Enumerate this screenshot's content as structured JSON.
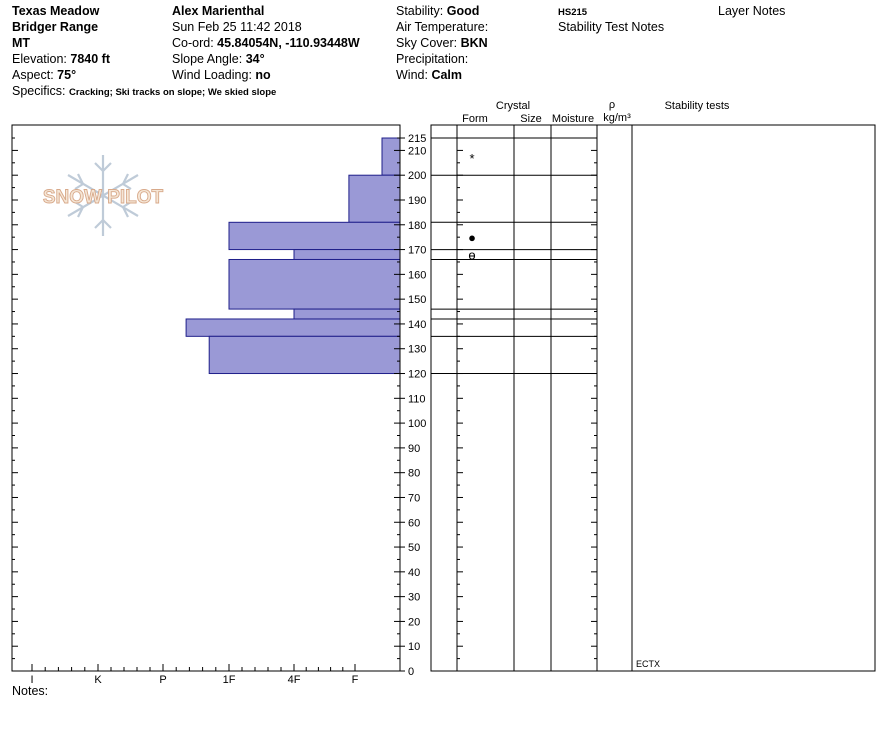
{
  "header": {
    "location": "Texas Meadow",
    "range": "Bridger Range",
    "state": "MT",
    "elevation_label": "Elevation:",
    "elevation_value": "7840 ft",
    "aspect_label": "Aspect:",
    "aspect_value": "75°",
    "specifics_label": "Specifics:",
    "specifics_value": "Cracking; Ski tracks on slope; We skied slope",
    "observer": "Alex Marienthal",
    "datetime": "Sun Feb 25 11:42 2018",
    "coord_label": "Co-ord:",
    "coord_value": "45.84054N, -110.93448W",
    "slope_label": "Slope Angle:",
    "slope_value": "34°",
    "wind_loading_label": "Wind Loading:",
    "wind_loading_value": "no",
    "stability_label": "Stability:",
    "stability_value": "Good",
    "air_temp_label": "Air Temperature:",
    "sky_label": "Sky Cover:",
    "sky_value": "BKN",
    "precip_label": "Precipitation:",
    "wind_label": "Wind:",
    "wind_value": "Calm",
    "hs": "HS215",
    "stability_test_notes": "Stability Test Notes",
    "layer_notes": "Layer Notes"
  },
  "logo_text": "SNOW PILOT",
  "notes_label": "Notes:",
  "columns": {
    "crystal": "Crystal",
    "form": "Form",
    "size": "Size",
    "moisture": "Moisture",
    "rho": "ρ",
    "density_unit": "kg/m³",
    "stability_tests": "Stability tests"
  },
  "chart_data": {
    "type": "bar",
    "orientation": "horizontal",
    "description_axis_y": "height (cm)",
    "ylim": [
      0,
      215
    ],
    "y_ticks": [
      0,
      10,
      20,
      30,
      40,
      50,
      60,
      70,
      80,
      90,
      100,
      110,
      120,
      130,
      140,
      150,
      160,
      170,
      180,
      190,
      200,
      210,
      215
    ],
    "x_categories": [
      "I",
      "K",
      "P",
      "1F",
      "4F",
      "F"
    ],
    "hardness_layers": [
      {
        "top": 215,
        "bottom": 200,
        "hardness_index": 5.6
      },
      {
        "top": 200,
        "bottom": 181,
        "hardness_index": 4.9
      },
      {
        "top": 181,
        "bottom": 170,
        "hardness_index": 3.0
      },
      {
        "top": 170,
        "bottom": 166,
        "hardness_index": 4.0
      },
      {
        "top": 166,
        "bottom": 146,
        "hardness_index": 3.0
      },
      {
        "top": 146,
        "bottom": 142,
        "hardness_index": 4.0
      },
      {
        "top": 142,
        "bottom": 135,
        "hardness_index": 2.35
      },
      {
        "top": 135,
        "bottom": 120,
        "hardness_index": 2.7
      }
    ],
    "layer_boundaries": [
      215,
      200,
      181,
      170,
      166,
      146,
      142,
      135,
      120
    ],
    "grain_forms": [
      {
        "height": 207,
        "symbol": "*"
      },
      {
        "height": 175,
        "symbol": "●"
      },
      {
        "height": 168,
        "symbol": "ɵ"
      }
    ],
    "stability_test_results": [
      {
        "height": 0,
        "label": "ECTX"
      }
    ]
  }
}
